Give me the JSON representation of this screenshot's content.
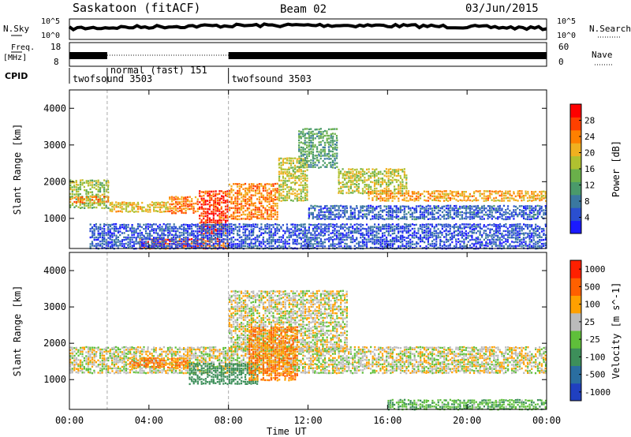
{
  "header": {
    "station": "Saskatoon (fitACF)",
    "beam": "Beam 02",
    "date": "03/Jun/2015"
  },
  "summary_panel": {
    "nsky_label": "N.Sky",
    "nsky_ticks": [
      "10^5",
      "10^0"
    ],
    "nsearch_label": "N.Search",
    "nsearch_ticks": [
      "10^5",
      "10^0"
    ],
    "freq_label": "Freq.",
    "freq_unit": "[MHz]",
    "freq_ticks": [
      "18",
      "8"
    ],
    "nave_label": "Nave",
    "nave_ticks": [
      "60",
      "0"
    ],
    "cpid_label": "CPID",
    "cpid_segments": [
      {
        "start_h": 0,
        "end_h": 1.9,
        "name": "twofsound",
        "id": "3503"
      },
      {
        "start_h": 1.9,
        "end_h": 8.0,
        "name": "normal (fast)",
        "id": "151"
      },
      {
        "start_h": 8.0,
        "end_h": 24,
        "name": "twofsound",
        "id": "3503"
      }
    ]
  },
  "chart_data": [
    {
      "type": "heatmap",
      "panel": "power",
      "ylabel": "Slant Range [km]",
      "xlabel": "",
      "x_range_hours": [
        0,
        24
      ],
      "ylim": [
        180,
        4500
      ],
      "yticks": [
        1000,
        2000,
        3000,
        4000
      ],
      "colorbar": {
        "label": "Power [dB]",
        "range": [
          0,
          32
        ],
        "ticks": [
          "4",
          "8",
          "12",
          "16",
          "20",
          "24",
          "28"
        ],
        "colors": [
          "#1a1aff",
          "#2a4fd0",
          "#3a78a0",
          "#4a9a6a",
          "#6ab04a",
          "#b0c030",
          "#f0b020",
          "#ff8000",
          "#ff4000",
          "#ff0000"
        ]
      },
      "bands": [
        {
          "t0": 0,
          "t1": 2,
          "r0": 1300,
          "r1": 2100,
          "level": 16
        },
        {
          "t0": 0,
          "t1": 2,
          "r0": 1450,
          "r1": 1650,
          "level": 24
        },
        {
          "t0": 2,
          "t1": 5,
          "r0": 1200,
          "r1": 1500,
          "level": 20
        },
        {
          "t0": 5,
          "t1": 6.5,
          "r0": 1150,
          "r1": 1650,
          "level": 24
        },
        {
          "t0": 6.5,
          "t1": 8,
          "r0": 600,
          "r1": 1800,
          "level": 28
        },
        {
          "t0": 3.5,
          "t1": 8,
          "r0": 200,
          "r1": 500,
          "level": 26
        },
        {
          "t0": 8,
          "t1": 10.5,
          "r0": 1000,
          "r1": 2000,
          "level": 24
        },
        {
          "t0": 10.5,
          "t1": 12,
          "r0": 1500,
          "r1": 2700,
          "level": 18
        },
        {
          "t0": 11.5,
          "t1": 13.5,
          "r0": 2400,
          "r1": 3500,
          "level": 12
        },
        {
          "t0": 13.5,
          "t1": 17,
          "r0": 1700,
          "r1": 2400,
          "level": 18
        },
        {
          "t0": 15,
          "t1": 24,
          "r0": 1500,
          "r1": 1800,
          "level": 22
        },
        {
          "t0": 12,
          "t1": 24,
          "r0": 1000,
          "r1": 1400,
          "level": 6
        },
        {
          "t0": 1,
          "t1": 24,
          "r0": 200,
          "r1": 900,
          "level": 5
        }
      ]
    },
    {
      "type": "heatmap",
      "panel": "velocity",
      "ylabel": "Slant Range [km]",
      "xlabel": "Time UT",
      "x_range_hours": [
        0,
        24
      ],
      "x_tick_labels": [
        "00:00",
        "04:00",
        "08:00",
        "12:00",
        "16:00",
        "20:00",
        "00:00"
      ],
      "ylim": [
        180,
        4500
      ],
      "yticks": [
        1000,
        2000,
        3000,
        4000
      ],
      "colorbar": {
        "label": "Velocity [m s^-1]",
        "ticks": [
          "1000",
          "500",
          "100",
          "25",
          "-25",
          "-100",
          "-500",
          "-1000"
        ],
        "colors": [
          "#2040c0",
          "#2a6ea0",
          "#3d8f5a",
          "#5fbf3a",
          "#bbbbbb",
          "#ffa000",
          "#ff6000",
          "#ff2000"
        ]
      },
      "bands": [
        {
          "t0": 0,
          "t1": 24,
          "r0": 1200,
          "r1": 1950,
          "level": 0
        },
        {
          "t0": 8,
          "t1": 14,
          "r0": 1800,
          "r1": 3500,
          "level": 0
        },
        {
          "t0": 3,
          "t1": 6,
          "r0": 1350,
          "r1": 1650,
          "level": -100
        },
        {
          "t0": 6,
          "t1": 9.5,
          "r0": 900,
          "r1": 1500,
          "level": 200
        },
        {
          "t0": 9,
          "t1": 11.5,
          "r0": 1000,
          "r1": 2500,
          "level": -100
        },
        {
          "t0": 16,
          "t1": 24,
          "r0": 200,
          "r1": 500,
          "level": 80
        }
      ]
    }
  ]
}
